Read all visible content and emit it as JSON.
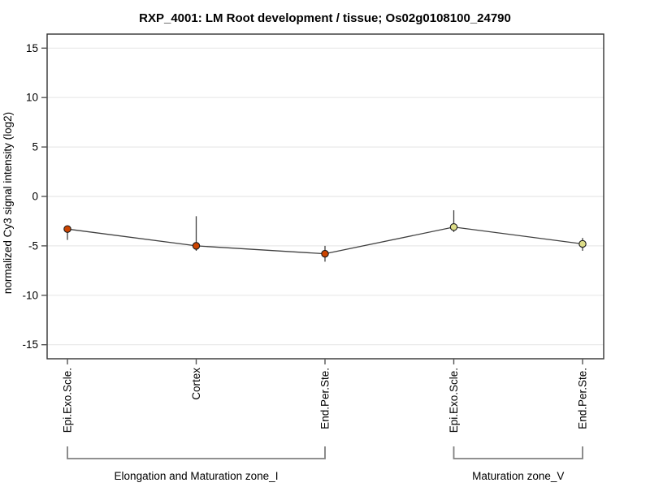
{
  "chart_data": {
    "type": "line",
    "title": "RXP_4001: LM Root development / tissue; Os02g0108100_24790",
    "ylabel": "normalized Cy3 signal intensity (log2)",
    "xlabel": "",
    "ylim": [
      -16.4,
      16.4
    ],
    "yticks": [
      -15,
      -10,
      -5,
      0,
      5,
      10,
      15
    ],
    "grid": true,
    "legend": "none",
    "categories": [
      "Epi.Exo.Scle.",
      "Cortex",
      "End.Per.Ste.",
      "Epi.Exo.Scle.",
      "End.Per.Ste."
    ],
    "series": [
      {
        "name": "normalized Cy3 signal intensity (log2)",
        "values": [
          -3.3,
          -5.0,
          -5.8,
          -3.1,
          -4.8
        ],
        "error_top": [
          -3.0,
          -2.0,
          -5.0,
          -1.4,
          -4.2
        ],
        "error_bottom": [
          -4.4,
          -5.5,
          -6.6,
          -3.6,
          -5.5
        ]
      }
    ],
    "groups": [
      {
        "label": "Elongation and Maturation zone_I",
        "from": 0,
        "to": 2,
        "point_color": "#cc4400"
      },
      {
        "label": "Maturation zone_V",
        "from": 3,
        "to": 4,
        "point_color": "#dddd88"
      }
    ],
    "colors": {
      "line": "#404040",
      "error_bar": "#404040",
      "point_outline": "#1a1a1a",
      "grid": "#e8e8e8",
      "axis_border": "#333333",
      "tick": "#555555",
      "bracket": "#808080",
      "text": "#000000"
    }
  }
}
